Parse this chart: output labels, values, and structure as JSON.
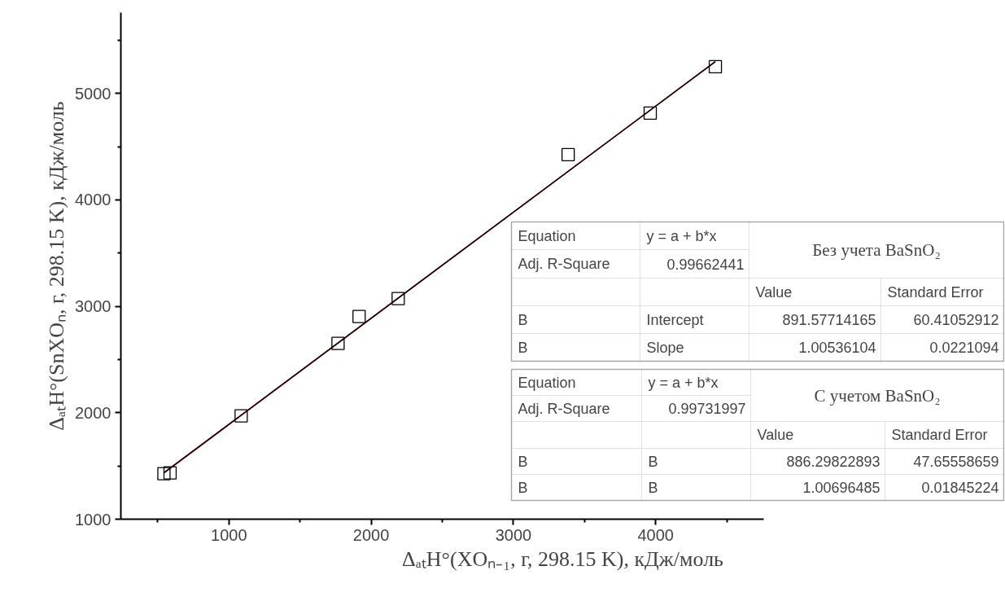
{
  "chart_data": {
    "type": "scatter",
    "xlabel": "ΔₐₜH°(XOₙ₋₁, г, 298.15 K), кДж/моль",
    "ylabel": "ΔₐₜH°(SnXOₙ, г, 298.15 K), кДж/моль",
    "xlim": [
      240,
      4760
    ],
    "ylim": [
      1000,
      5760
    ],
    "xticks": [
      {
        "value": 500,
        "label": null
      },
      1000,
      {
        "value": 1500,
        "label": null
      },
      2000,
      {
        "value": 2500,
        "label": null
      },
      3000,
      {
        "value": 3500,
        "label": null
      },
      4000,
      {
        "value": 4500,
        "label": null
      }
    ],
    "yticks": [
      1000,
      {
        "value": 1500,
        "label": null
      },
      2000,
      {
        "value": 2500,
        "label": null
      },
      3000,
      {
        "value": 3500,
        "label": null
      },
      4000,
      {
        "value": 4500,
        "label": null
      },
      5000,
      {
        "value": 5500,
        "label": null
      }
    ],
    "grid": false,
    "marker": "square",
    "series": [
      {
        "type": "line",
        "marker": "none",
        "color": "#ff0000",
        "x": [
          543,
          4420
        ],
        "values": [
          1433,
          5300
        ]
      },
      {
        "type": "line",
        "marker": "none",
        "color": "#000000",
        "x": [
          543,
          4420
        ],
        "values": [
          1437,
          5300
        ]
      },
      {
        "type": "scatter",
        "color": "#000000",
        "x": [
          543,
          586,
          1086,
          1767,
          1915,
          2190,
          3385,
          3962,
          4420
        ],
        "values": [
          1428,
          1436,
          1971,
          2652,
          2904,
          3073,
          4426,
          4816,
          5252
        ]
      }
    ],
    "annotations": [
      "Equation",
      "y = a + b*x",
      "Adj. R-Square",
      "0.99662441",
      "Без учета BaSnO₂",
      "Value",
      "Standard Error",
      "B",
      "Intercept",
      "891.57714165",
      "60.41052912",
      "B",
      "Slope",
      "1.00536104",
      "0.0221094",
      "Equation",
      "y = a + b*x",
      "Adj. R-Square",
      "0.99731997",
      "С учетом BaSnO₂",
      "Value",
      "Standard Error",
      "B",
      "B",
      "886.29822893",
      "47.65558659",
      "B",
      "B",
      "1.00696485",
      "0.01845224"
    ]
  }
}
